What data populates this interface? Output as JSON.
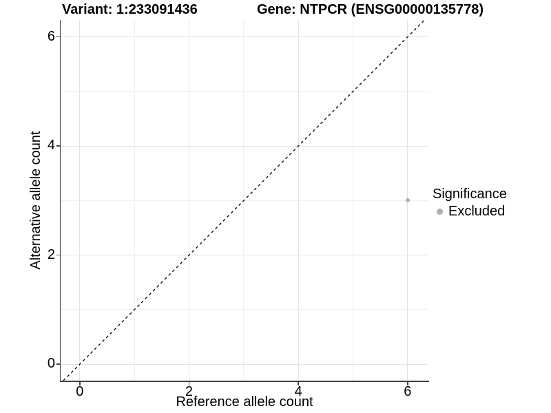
{
  "chart_data": {
    "type": "scatter",
    "title_left": "Variant: 1:233091436",
    "title_right": "Gene: NTPCR (ENSG00000135778)",
    "xlabel": "Reference allele count",
    "ylabel": "Alternative allele count",
    "xlim": [
      -0.35,
      6.38
    ],
    "ylim": [
      -0.3,
      6.31
    ],
    "xticks": [
      0,
      2,
      4,
      6
    ],
    "yticks": [
      0,
      2,
      4,
      6
    ],
    "x_minor": [
      1,
      3,
      5
    ],
    "y_minor": [
      1,
      3,
      5
    ],
    "grid": "major+minor",
    "identity_line": {
      "slope": 1,
      "intercept": 0,
      "style": "dashed",
      "color": "#000000"
    },
    "series": [
      {
        "name": "Excluded",
        "color": "#b0b0b0",
        "points": [
          {
            "x": 6,
            "y": 3
          }
        ]
      }
    ],
    "legend": {
      "title": "Significance",
      "position": "right",
      "items": [
        {
          "label": "Excluded",
          "color": "#b0b0b0"
        }
      ]
    }
  },
  "colors": {
    "axis_line": "#404040",
    "grid_major": "#e3e3e3",
    "grid_minor": "#efefef",
    "dashed_line": "#000000",
    "point": "#b0b0b0",
    "background": "#ffffff",
    "text": "#000000"
  }
}
